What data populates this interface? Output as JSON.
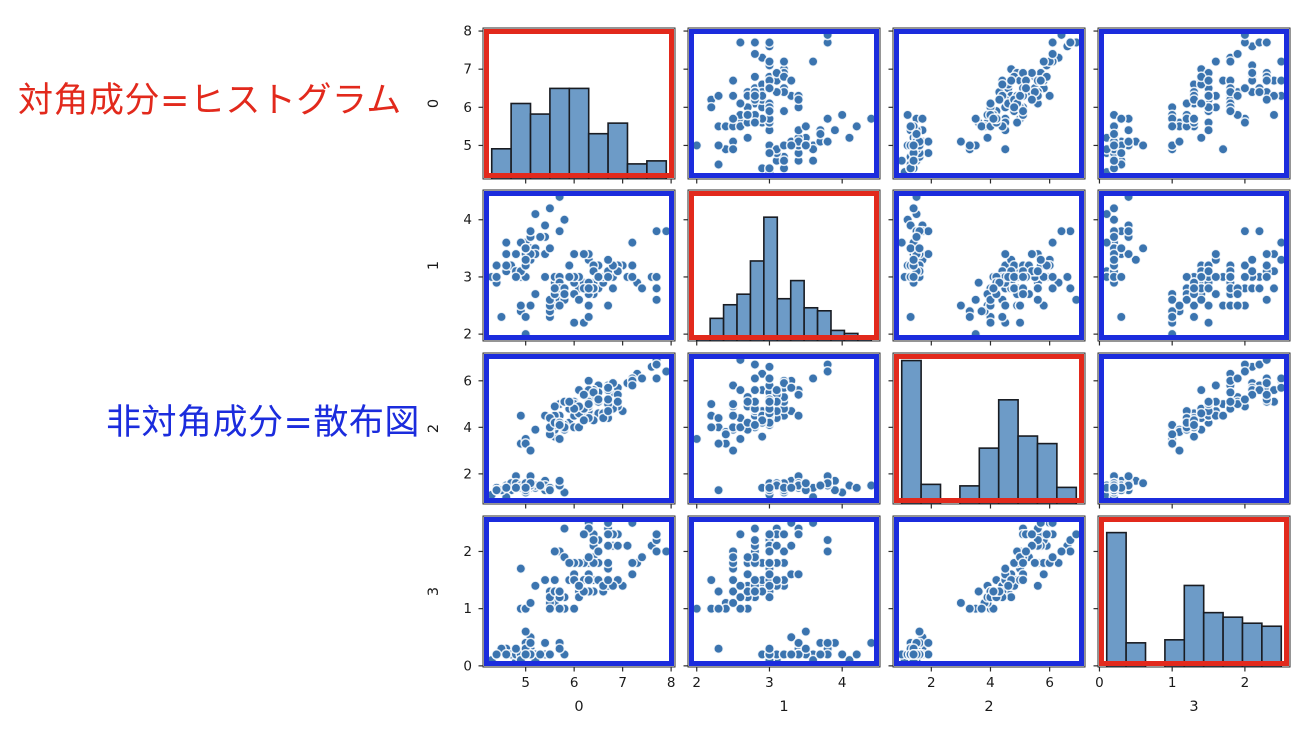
{
  "annotations": {
    "diagonal": {
      "text": "対角成分=ヒストグラム",
      "color": "#e2291c"
    },
    "offdiagonal": {
      "text": "非対角成分=散布図",
      "color": "#1b2cdd"
    }
  },
  "chart_data": {
    "type": "scatter",
    "subtype": "scatter_matrix_pairplot",
    "title": "",
    "grid": "off",
    "legend": "none",
    "n_points": 150,
    "variables": [
      "0",
      "1",
      "2",
      "3"
    ],
    "style": {
      "marker_color": "#3b74af",
      "marker_edge_color": "#ffffff",
      "hist_fill": "#6d9bc7",
      "hist_edge": "#191c22",
      "diag_frame_color": "#e2291c",
      "offdiag_frame_color": "#1b2cdd",
      "spine_color": "#2b2b2b",
      "tick_label_color": "#1a1a1a",
      "background": "#ffffff"
    },
    "axes": [
      {
        "label": "0",
        "min": 4.12,
        "max": 8.08,
        "ticks": [
          5,
          6,
          7,
          8
        ],
        "data_min": 4.3,
        "data_max": 7.9
      },
      {
        "label": "1",
        "min": 1.88,
        "max": 4.52,
        "ticks": [
          2,
          3,
          4
        ],
        "data_min": 2.0,
        "data_max": 4.4
      },
      {
        "label": "2",
        "min": 0.705,
        "max": 7.195,
        "ticks": [
          2,
          4,
          6
        ],
        "data_min": 1.0,
        "data_max": 6.9
      },
      {
        "label": "3",
        "min": -0.02,
        "max": 2.62,
        "ticks": [
          0,
          1,
          2
        ],
        "data_min": 0.1,
        "data_max": 2.5
      }
    ],
    "diag_histograms": [
      {
        "variable": "0",
        "n_bins": 9,
        "heights_frac": [
          0.2,
          0.5,
          0.43,
          0.6,
          0.6,
          0.3,
          0.37,
          0.1,
          0.12
        ]
      },
      {
        "variable": "1",
        "n_bins": 13,
        "heights_frac": [
          0.02,
          0.15,
          0.24,
          0.31,
          0.53,
          0.82,
          0.28,
          0.4,
          0.22,
          0.2,
          0.07,
          0.05,
          0.03
        ]
      },
      {
        "variable": "2",
        "n_bins": 9,
        "heights_frac": [
          0.95,
          0.13,
          0.0,
          0.12,
          0.37,
          0.69,
          0.45,
          0.4,
          0.11
        ]
      },
      {
        "variable": "3",
        "n_bins": 9,
        "heights_frac": [
          0.89,
          0.16,
          0.0,
          0.18,
          0.54,
          0.36,
          0.33,
          0.29,
          0.27
        ]
      }
    ],
    "points": [
      [
        5.1,
        3.5,
        1.4,
        0.2
      ],
      [
        4.9,
        3.0,
        1.4,
        0.2
      ],
      [
        4.7,
        3.2,
        1.3,
        0.2
      ],
      [
        4.6,
        3.1,
        1.5,
        0.2
      ],
      [
        5.0,
        3.6,
        1.4,
        0.2
      ],
      [
        5.4,
        3.9,
        1.7,
        0.4
      ],
      [
        4.6,
        3.4,
        1.4,
        0.3
      ],
      [
        5.0,
        3.4,
        1.5,
        0.2
      ],
      [
        4.4,
        2.9,
        1.4,
        0.2
      ],
      [
        4.9,
        3.1,
        1.5,
        0.1
      ],
      [
        5.4,
        3.7,
        1.5,
        0.2
      ],
      [
        4.8,
        3.4,
        1.6,
        0.2
      ],
      [
        4.8,
        3.0,
        1.4,
        0.1
      ],
      [
        4.3,
        3.0,
        1.1,
        0.1
      ],
      [
        5.8,
        4.0,
        1.2,
        0.2
      ],
      [
        5.7,
        4.4,
        1.5,
        0.4
      ],
      [
        5.4,
        3.9,
        1.3,
        0.4
      ],
      [
        5.1,
        3.5,
        1.4,
        0.3
      ],
      [
        5.7,
        3.8,
        1.7,
        0.3
      ],
      [
        5.1,
        3.8,
        1.5,
        0.3
      ],
      [
        5.4,
        3.4,
        1.7,
        0.2
      ],
      [
        5.1,
        3.7,
        1.5,
        0.4
      ],
      [
        4.6,
        3.6,
        1.0,
        0.2
      ],
      [
        5.1,
        3.3,
        1.7,
        0.5
      ],
      [
        4.8,
        3.4,
        1.9,
        0.2
      ],
      [
        5.0,
        3.0,
        1.6,
        0.2
      ],
      [
        5.0,
        3.4,
        1.6,
        0.4
      ],
      [
        5.2,
        3.5,
        1.5,
        0.2
      ],
      [
        5.2,
        3.4,
        1.4,
        0.2
      ],
      [
        4.7,
        3.2,
        1.6,
        0.2
      ],
      [
        4.8,
        3.1,
        1.6,
        0.2
      ],
      [
        5.4,
        3.4,
        1.5,
        0.4
      ],
      [
        5.2,
        4.1,
        1.5,
        0.1
      ],
      [
        5.5,
        4.2,
        1.4,
        0.2
      ],
      [
        4.9,
        3.1,
        1.5,
        0.2
      ],
      [
        5.0,
        3.2,
        1.2,
        0.2
      ],
      [
        5.5,
        3.5,
        1.3,
        0.2
      ],
      [
        4.9,
        3.6,
        1.4,
        0.1
      ],
      [
        4.4,
        3.0,
        1.3,
        0.2
      ],
      [
        5.1,
        3.4,
        1.5,
        0.2
      ],
      [
        5.0,
        3.5,
        1.3,
        0.3
      ],
      [
        4.5,
        2.3,
        1.3,
        0.3
      ],
      [
        4.4,
        3.2,
        1.3,
        0.2
      ],
      [
        5.0,
        3.5,
        1.6,
        0.6
      ],
      [
        5.1,
        3.8,
        1.9,
        0.4
      ],
      [
        4.8,
        3.0,
        1.4,
        0.3
      ],
      [
        5.1,
        3.8,
        1.6,
        0.2
      ],
      [
        4.6,
        3.2,
        1.4,
        0.2
      ],
      [
        5.3,
        3.7,
        1.5,
        0.2
      ],
      [
        5.0,
        3.3,
        1.4,
        0.2
      ],
      [
        7.0,
        3.2,
        4.7,
        1.4
      ],
      [
        6.4,
        3.2,
        4.5,
        1.5
      ],
      [
        6.9,
        3.1,
        4.9,
        1.5
      ],
      [
        5.5,
        2.3,
        4.0,
        1.3
      ],
      [
        6.5,
        2.8,
        4.6,
        1.5
      ],
      [
        5.7,
        2.8,
        4.5,
        1.3
      ],
      [
        6.3,
        3.3,
        4.7,
        1.6
      ],
      [
        4.9,
        2.4,
        3.3,
        1.0
      ],
      [
        6.6,
        2.9,
        4.6,
        1.3
      ],
      [
        5.2,
        2.7,
        3.9,
        1.4
      ],
      [
        5.0,
        2.0,
        3.5,
        1.0
      ],
      [
        5.9,
        3.0,
        4.2,
        1.5
      ],
      [
        6.0,
        2.2,
        4.0,
        1.0
      ],
      [
        6.1,
        2.9,
        4.7,
        1.4
      ],
      [
        5.6,
        2.9,
        3.6,
        1.3
      ],
      [
        6.7,
        3.1,
        4.4,
        1.4
      ],
      [
        5.6,
        3.0,
        4.5,
        1.5
      ],
      [
        5.8,
        2.7,
        4.1,
        1.0
      ],
      [
        6.2,
        2.2,
        4.5,
        1.5
      ],
      [
        5.6,
        2.5,
        3.9,
        1.1
      ],
      [
        5.9,
        3.2,
        4.8,
        1.8
      ],
      [
        6.1,
        2.8,
        4.0,
        1.3
      ],
      [
        6.3,
        2.5,
        4.9,
        1.5
      ],
      [
        6.1,
        2.8,
        4.7,
        1.2
      ],
      [
        6.4,
        2.9,
        4.3,
        1.3
      ],
      [
        6.6,
        3.0,
        4.4,
        1.4
      ],
      [
        6.8,
        2.8,
        4.8,
        1.4
      ],
      [
        6.7,
        3.0,
        5.0,
        1.7
      ],
      [
        6.0,
        2.9,
        4.5,
        1.5
      ],
      [
        5.7,
        2.6,
        3.5,
        1.0
      ],
      [
        5.5,
        2.4,
        3.8,
        1.1
      ],
      [
        5.5,
        2.4,
        3.7,
        1.0
      ],
      [
        5.8,
        2.7,
        3.9,
        1.2
      ],
      [
        6.0,
        2.7,
        5.1,
        1.6
      ],
      [
        5.4,
        3.0,
        4.5,
        1.5
      ],
      [
        6.0,
        3.4,
        4.5,
        1.6
      ],
      [
        6.7,
        3.1,
        4.7,
        1.5
      ],
      [
        6.3,
        2.3,
        4.4,
        1.3
      ],
      [
        5.6,
        3.0,
        4.1,
        1.3
      ],
      [
        5.5,
        2.5,
        4.0,
        1.3
      ],
      [
        5.5,
        2.6,
        4.4,
        1.2
      ],
      [
        6.1,
        3.0,
        4.6,
        1.4
      ],
      [
        5.8,
        2.6,
        4.0,
        1.2
      ],
      [
        5.0,
        2.3,
        3.3,
        1.0
      ],
      [
        5.6,
        2.7,
        4.2,
        1.3
      ],
      [
        5.7,
        3.0,
        4.2,
        1.2
      ],
      [
        5.7,
        2.9,
        4.2,
        1.3
      ],
      [
        6.2,
        2.9,
        4.3,
        1.3
      ],
      [
        5.1,
        2.5,
        3.0,
        1.1
      ],
      [
        5.7,
        2.8,
        4.1,
        1.3
      ],
      [
        6.3,
        3.3,
        6.0,
        2.5
      ],
      [
        5.8,
        2.7,
        5.1,
        1.9
      ],
      [
        7.1,
        3.0,
        5.9,
        2.1
      ],
      [
        6.3,
        2.9,
        5.6,
        1.8
      ],
      [
        6.5,
        3.0,
        5.8,
        2.2
      ],
      [
        7.6,
        3.0,
        6.6,
        2.1
      ],
      [
        4.9,
        2.5,
        4.5,
        1.7
      ],
      [
        7.3,
        2.9,
        6.3,
        1.8
      ],
      [
        6.7,
        2.5,
        5.8,
        1.8
      ],
      [
        7.2,
        3.6,
        6.1,
        2.5
      ],
      [
        6.5,
        3.2,
        5.1,
        2.0
      ],
      [
        6.4,
        2.7,
        5.3,
        1.9
      ],
      [
        6.8,
        3.0,
        5.5,
        2.1
      ],
      [
        5.7,
        2.5,
        5.0,
        2.0
      ],
      [
        5.8,
        2.8,
        5.1,
        2.4
      ],
      [
        6.4,
        3.2,
        5.3,
        2.3
      ],
      [
        6.5,
        3.0,
        5.5,
        1.8
      ],
      [
        7.7,
        3.8,
        6.7,
        2.2
      ],
      [
        7.7,
        2.6,
        6.9,
        2.3
      ],
      [
        6.0,
        2.2,
        5.0,
        1.5
      ],
      [
        6.9,
        3.2,
        5.7,
        2.3
      ],
      [
        5.6,
        2.8,
        4.9,
        2.0
      ],
      [
        7.7,
        2.8,
        6.7,
        2.0
      ],
      [
        6.3,
        2.7,
        4.9,
        1.8
      ],
      [
        6.7,
        3.3,
        5.7,
        2.1
      ],
      [
        7.2,
        3.2,
        6.0,
        1.8
      ],
      [
        6.2,
        2.8,
        4.8,
        1.8
      ],
      [
        6.1,
        3.0,
        4.9,
        1.8
      ],
      [
        6.4,
        2.8,
        5.6,
        2.1
      ],
      [
        7.2,
        3.0,
        5.8,
        1.6
      ],
      [
        7.4,
        2.8,
        6.1,
        1.9
      ],
      [
        7.9,
        3.8,
        6.4,
        2.0
      ],
      [
        6.4,
        2.8,
        5.6,
        2.2
      ],
      [
        6.3,
        2.8,
        5.1,
        1.5
      ],
      [
        6.1,
        2.6,
        5.6,
        1.4
      ],
      [
        7.7,
        3.0,
        6.1,
        2.3
      ],
      [
        6.3,
        3.4,
        5.6,
        2.4
      ],
      [
        6.4,
        3.1,
        5.5,
        1.8
      ],
      [
        6.0,
        3.0,
        4.8,
        1.8
      ],
      [
        6.9,
        3.1,
        5.4,
        2.1
      ],
      [
        6.7,
        3.1,
        5.6,
        2.4
      ],
      [
        6.9,
        3.1,
        5.1,
        2.3
      ],
      [
        5.8,
        2.7,
        5.1,
        1.9
      ],
      [
        6.8,
        3.2,
        5.9,
        2.3
      ],
      [
        6.7,
        3.3,
        5.7,
        2.5
      ],
      [
        6.7,
        3.0,
        5.2,
        2.3
      ],
      [
        6.3,
        2.5,
        5.0,
        1.9
      ],
      [
        6.5,
        3.0,
        5.2,
        2.0
      ],
      [
        6.2,
        3.4,
        5.4,
        2.3
      ],
      [
        5.9,
        3.0,
        5.1,
        1.8
      ]
    ]
  }
}
